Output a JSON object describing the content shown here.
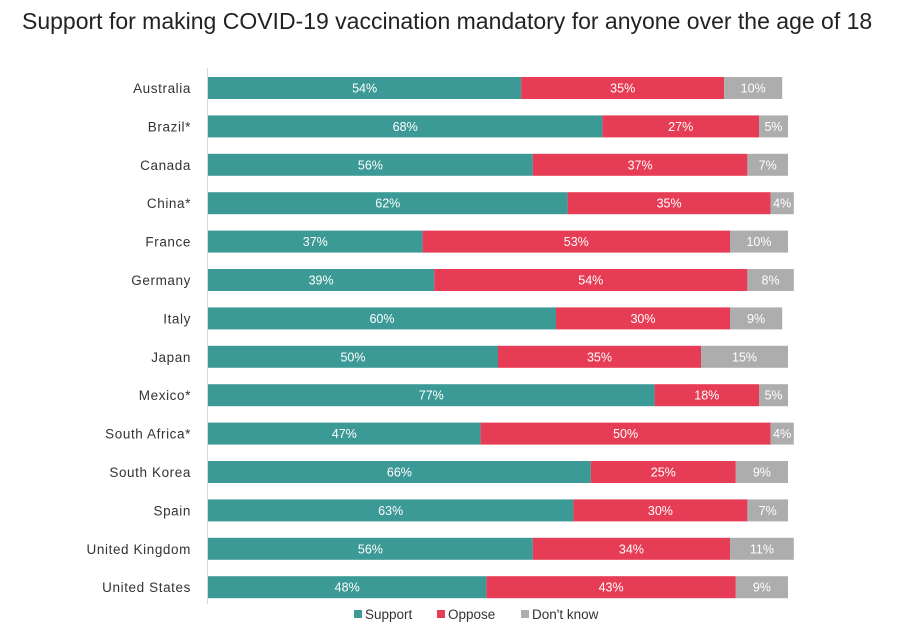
{
  "title": "Support for making COVID-19 vaccination mandatory for anyone over the age of 18",
  "colors": {
    "Support": "#3c9a96",
    "Oppose": "#e63c55",
    "Don't know": "#adadad"
  },
  "chart_data": {
    "type": "bar",
    "orientation": "horizontal",
    "stacked": true,
    "title": "Support for making COVID-19 vaccination mandatory for anyone over the age of 18",
    "categories": [
      "Australia",
      "Brazil*",
      "Canada",
      "China*",
      "France",
      "Germany",
      "Italy",
      "Japan",
      "Mexico*",
      "South Africa*",
      "South Korea",
      "Spain",
      "United Kingdom",
      "United States"
    ],
    "series": [
      {
        "name": "Support",
        "values": [
          54,
          68,
          56,
          62,
          37,
          39,
          60,
          50,
          77,
          47,
          66,
          63,
          56,
          48
        ]
      },
      {
        "name": "Oppose",
        "values": [
          35,
          27,
          37,
          35,
          53,
          54,
          30,
          35,
          18,
          50,
          25,
          30,
          34,
          43
        ]
      },
      {
        "name": "Don't know",
        "values": [
          10,
          5,
          7,
          4,
          10,
          8,
          9,
          15,
          5,
          4,
          9,
          7,
          11,
          9
        ]
      }
    ],
    "value_suffix": "%",
    "xlim": [
      0,
      100
    ],
    "grid": false,
    "legend_position": "bottom"
  }
}
